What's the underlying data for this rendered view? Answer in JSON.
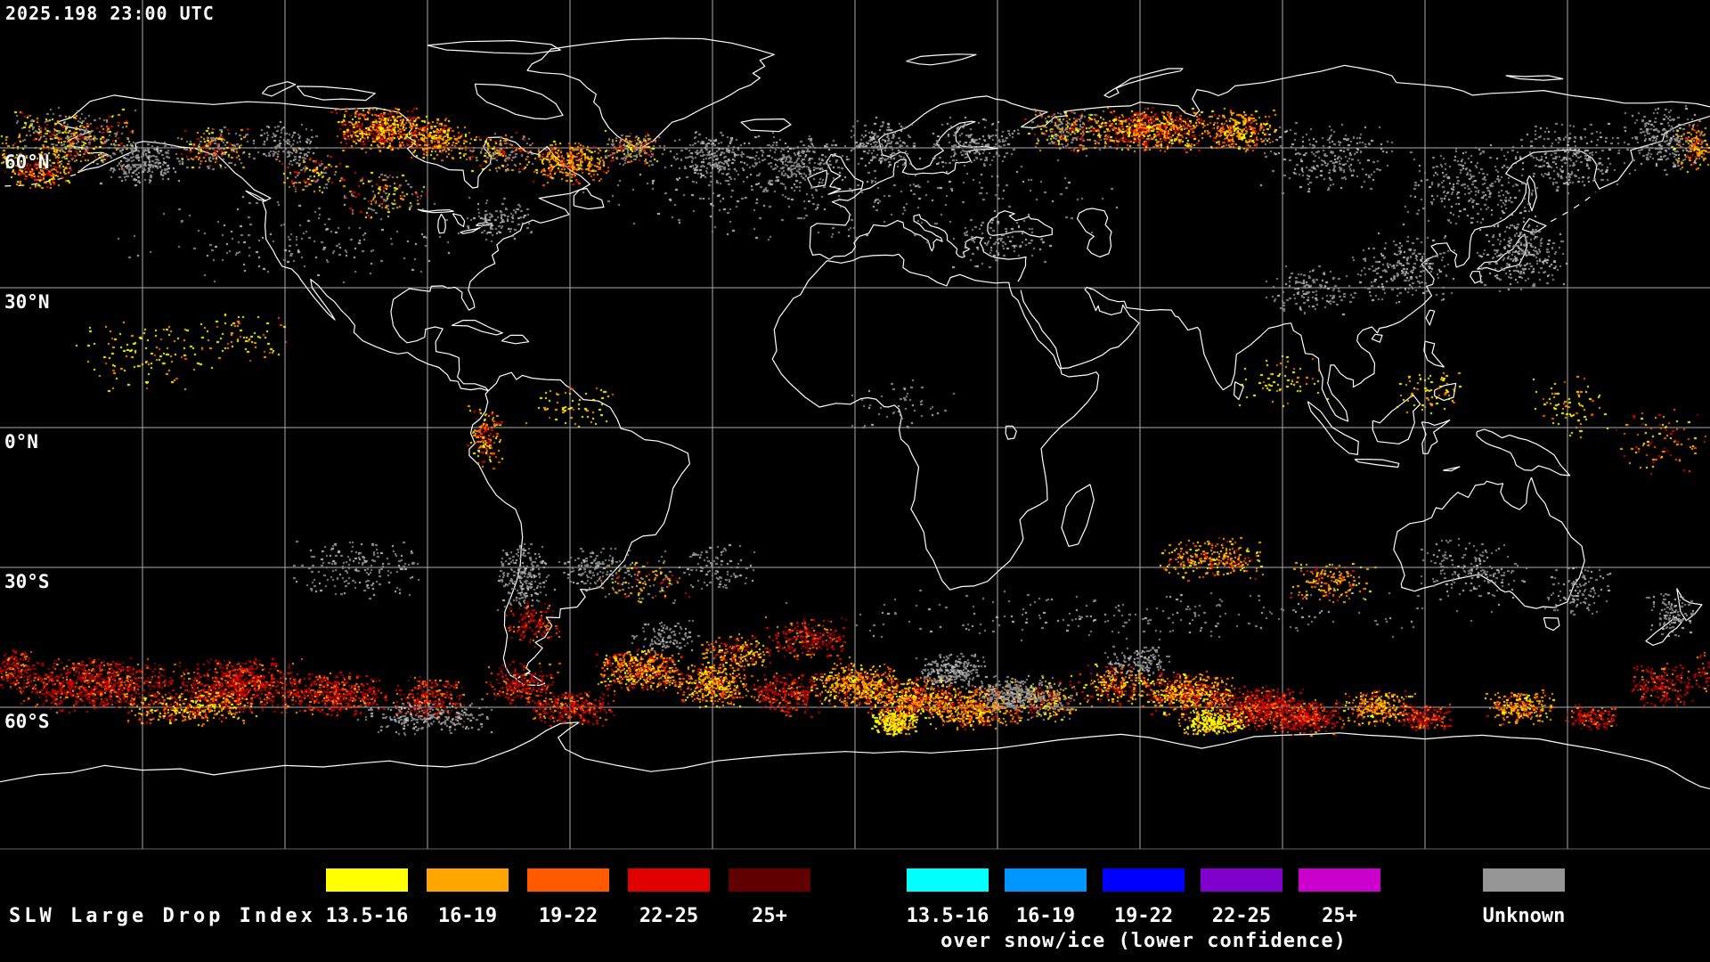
{
  "header": {
    "timestamp": "2025.198 23:00 UTC"
  },
  "map": {
    "projection": "equirectangular",
    "background_color": "#000000",
    "coastline_color": "#ffffff",
    "grid_color": "#bebebe",
    "latitude_labels": [
      "60°N",
      "30°N",
      "0°N",
      "30°S",
      "60°S"
    ],
    "latitudes": [
      60,
      30,
      0,
      -30,
      -60
    ],
    "longitude_grid_step_deg": 30,
    "speckle_palettes": {
      "hot": [
        [
          "#FFFF00",
          0.22
        ],
        [
          "#FFA500",
          0.28
        ],
        [
          "#FF5500",
          0.2
        ],
        [
          "#E00000",
          0.22
        ],
        [
          "#8B0000",
          0.08
        ]
      ],
      "red": [
        [
          "#E00000",
          0.42
        ],
        [
          "#8B0000",
          0.3
        ],
        [
          "#FF5500",
          0.18
        ],
        [
          "#FFA500",
          0.1
        ]
      ],
      "orange": [
        [
          "#FFA500",
          0.45
        ],
        [
          "#FF5500",
          0.25
        ],
        [
          "#FFFF00",
          0.18
        ],
        [
          "#E00000",
          0.12
        ]
      ],
      "yellow": [
        [
          "#FFFF00",
          0.62
        ],
        [
          "#FFA500",
          0.28
        ],
        [
          "#FF5500",
          0.1
        ]
      ],
      "gray": [
        [
          "#8A8A8A",
          0.75
        ],
        [
          "#C0C0C0",
          0.25
        ]
      ],
      "hotgray": [
        [
          "#8A8A8A",
          0.4
        ],
        [
          "#FFA500",
          0.22
        ],
        [
          "#FFFF00",
          0.18
        ],
        [
          "#E00000",
          0.2
        ]
      ]
    },
    "speckle_clusters": [
      [
        -165,
        62,
        14,
        7,
        450,
        "hotgray"
      ],
      [
        -172,
        55,
        8,
        4,
        220,
        "hot"
      ],
      [
        -150,
        57,
        10,
        5,
        260,
        "gray"
      ],
      [
        -135,
        60,
        8,
        5,
        200,
        "hotgray"
      ],
      [
        -120,
        61,
        8,
        5,
        140,
        "gray"
      ],
      [
        -100,
        64,
        11,
        5,
        520,
        "hot"
      ],
      [
        -88,
        62,
        8,
        5,
        240,
        "orange"
      ],
      [
        -75,
        59,
        8,
        5,
        180,
        "hotgray"
      ],
      [
        -60,
        57,
        9,
        5,
        320,
        "orange"
      ],
      [
        -47,
        60,
        7,
        4,
        200,
        "hotgray"
      ],
      [
        -30,
        58,
        10,
        6,
        240,
        "gray"
      ],
      [
        -12,
        57,
        11,
        7,
        280,
        "gray"
      ],
      [
        5,
        61,
        8,
        6,
        180,
        "gray"
      ],
      [
        25,
        61,
        10,
        6,
        180,
        "gray"
      ],
      [
        45,
        64,
        10,
        5,
        280,
        "hotgray"
      ],
      [
        62,
        64,
        12,
        5,
        650,
        "hot"
      ],
      [
        80,
        64,
        9,
        5,
        300,
        "orange"
      ],
      [
        100,
        58,
        15,
        8,
        240,
        "gray"
      ],
      [
        130,
        52,
        15,
        10,
        280,
        "gray"
      ],
      [
        150,
        58,
        12,
        8,
        240,
        "gray"
      ],
      [
        170,
        62,
        10,
        8,
        240,
        "gray"
      ],
      [
        140,
        37,
        10,
        8,
        280,
        "gray"
      ],
      [
        115,
        34,
        12,
        8,
        240,
        "gray"
      ],
      [
        95,
        30,
        10,
        6,
        140,
        "gray"
      ],
      [
        30,
        40,
        12,
        6,
        110,
        "gray"
      ],
      [
        -75,
        45,
        8,
        5,
        110,
        "gray"
      ],
      [
        -100,
        50,
        10,
        6,
        140,
        "hotgray"
      ],
      [
        -115,
        55,
        8,
        5,
        120,
        "hotgray"
      ],
      [
        -150,
        15,
        15,
        8,
        110,
        "yellow"
      ],
      [
        -130,
        20,
        12,
        6,
        70,
        "yellow"
      ],
      [
        -78,
        -2,
        4,
        7,
        140,
        "hot"
      ],
      [
        -60,
        5,
        10,
        5,
        60,
        "yellow"
      ],
      [
        10,
        5,
        12,
        6,
        50,
        "gray"
      ],
      [
        90,
        10,
        10,
        6,
        60,
        "yellow"
      ],
      [
        120,
        8,
        8,
        6,
        70,
        "yellow"
      ],
      [
        170,
        -3,
        10,
        8,
        90,
        "hot"
      ],
      [
        150,
        5,
        10,
        8,
        70,
        "yellow"
      ],
      [
        -105,
        -30,
        15,
        7,
        190,
        "gray"
      ],
      [
        -70,
        -32,
        6,
        8,
        230,
        "gray"
      ],
      [
        -55,
        -30,
        10,
        6,
        140,
        "gray"
      ],
      [
        -30,
        -30,
        12,
        6,
        100,
        "gray"
      ],
      [
        75,
        -28,
        12,
        5,
        260,
        "orange"
      ],
      [
        100,
        -33,
        10,
        5,
        150,
        "orange"
      ],
      [
        130,
        -30,
        12,
        7,
        180,
        "gray"
      ],
      [
        152,
        -35,
        8,
        6,
        110,
        "gray"
      ],
      [
        172,
        -40,
        6,
        5,
        110,
        "gray"
      ],
      [
        -160,
        -55,
        18,
        6,
        850,
        "red"
      ],
      [
        -130,
        -55,
        15,
        6,
        750,
        "red"
      ],
      [
        -110,
        -57,
        12,
        5,
        480,
        "red"
      ],
      [
        -140,
        -60,
        15,
        4,
        380,
        "hot"
      ],
      [
        -90,
        -58,
        8,
        5,
        280,
        "red"
      ],
      [
        -70,
        -55,
        8,
        5,
        240,
        "red"
      ],
      [
        -45,
        -52,
        10,
        5,
        480,
        "hot"
      ],
      [
        -30,
        -55,
        8,
        5,
        380,
        "orange"
      ],
      [
        -15,
        -57,
        8,
        5,
        280,
        "red"
      ],
      [
        0,
        -55,
        10,
        5,
        480,
        "orange"
      ],
      [
        12,
        -58,
        10,
        5,
        560,
        "hot"
      ],
      [
        25,
        -60,
        10,
        5,
        480,
        "orange"
      ],
      [
        8,
        -63,
        5,
        3,
        280,
        "yellow"
      ],
      [
        40,
        -58,
        8,
        5,
        280,
        "hotgray"
      ],
      [
        55,
        -55,
        8,
        5,
        240,
        "hot"
      ],
      [
        70,
        -57,
        10,
        5,
        560,
        "hot"
      ],
      [
        85,
        -60,
        10,
        5,
        560,
        "red"
      ],
      [
        95,
        -62,
        8,
        4,
        380,
        "red"
      ],
      [
        75,
        -63,
        8,
        3,
        280,
        "yellow"
      ],
      [
        110,
        -60,
        8,
        4,
        280,
        "orange"
      ],
      [
        120,
        -62,
        6,
        3,
        190,
        "red"
      ],
      [
        140,
        -60,
        8,
        4,
        240,
        "orange"
      ],
      [
        155,
        -62,
        6,
        3,
        140,
        "red"
      ],
      [
        170,
        -55,
        8,
        5,
        190,
        "red"
      ],
      [
        -178,
        -52,
        6,
        5,
        190,
        "red"
      ],
      [
        -60,
        -60,
        10,
        4,
        280,
        "red"
      ],
      [
        20,
        -52,
        8,
        4,
        240,
        "gray"
      ],
      [
        -40,
        -45,
        8,
        4,
        110,
        "gray"
      ],
      [
        60,
        -50,
        8,
        4,
        140,
        "gray"
      ],
      [
        33,
        -57,
        8,
        4,
        280,
        "gray"
      ],
      [
        -10,
        -45,
        9,
        5,
        240,
        "red"
      ],
      [
        -25,
        -48,
        8,
        4,
        190,
        "hot"
      ],
      [
        -45,
        -33,
        10,
        5,
        110,
        "hotgray"
      ],
      [
        -68,
        -42,
        6,
        5,
        140,
        "red"
      ],
      [
        -90,
        -62,
        15,
        4,
        240,
        "gray"
      ],
      [
        177,
        60,
        5,
        6,
        140,
        "orange"
      ],
      [
        0,
        50,
        60,
        12,
        260,
        "gray"
      ],
      [
        -120,
        40,
        40,
        10,
        160,
        "gray"
      ],
      [
        60,
        -40,
        80,
        6,
        220,
        "gray"
      ]
    ]
  },
  "legend": {
    "title": "SLW Large Drop Index",
    "groups": [
      {
        "name": "standard",
        "items": [
          {
            "label": "13.5-16",
            "color": "#FFFF00"
          },
          {
            "label": "16-19",
            "color": "#FFA500"
          },
          {
            "label": "19-22",
            "color": "#FF5A00"
          },
          {
            "label": "22-25",
            "color": "#E00000"
          },
          {
            "label": "25+",
            "color": "#600000"
          }
        ]
      },
      {
        "name": "snow-ice",
        "caption": "over snow/ice (lower confidence)",
        "items": [
          {
            "label": "13.5-16",
            "color": "#00FFFF"
          },
          {
            "label": "16-19",
            "color": "#0096FF"
          },
          {
            "label": "19-22",
            "color": "#0000FF"
          },
          {
            "label": "22-25",
            "color": "#8000CC"
          },
          {
            "label": "25+",
            "color": "#CC00CC"
          }
        ]
      },
      {
        "name": "unknown",
        "items": [
          {
            "label": "Unknown",
            "color": "#969696"
          }
        ]
      }
    ]
  }
}
